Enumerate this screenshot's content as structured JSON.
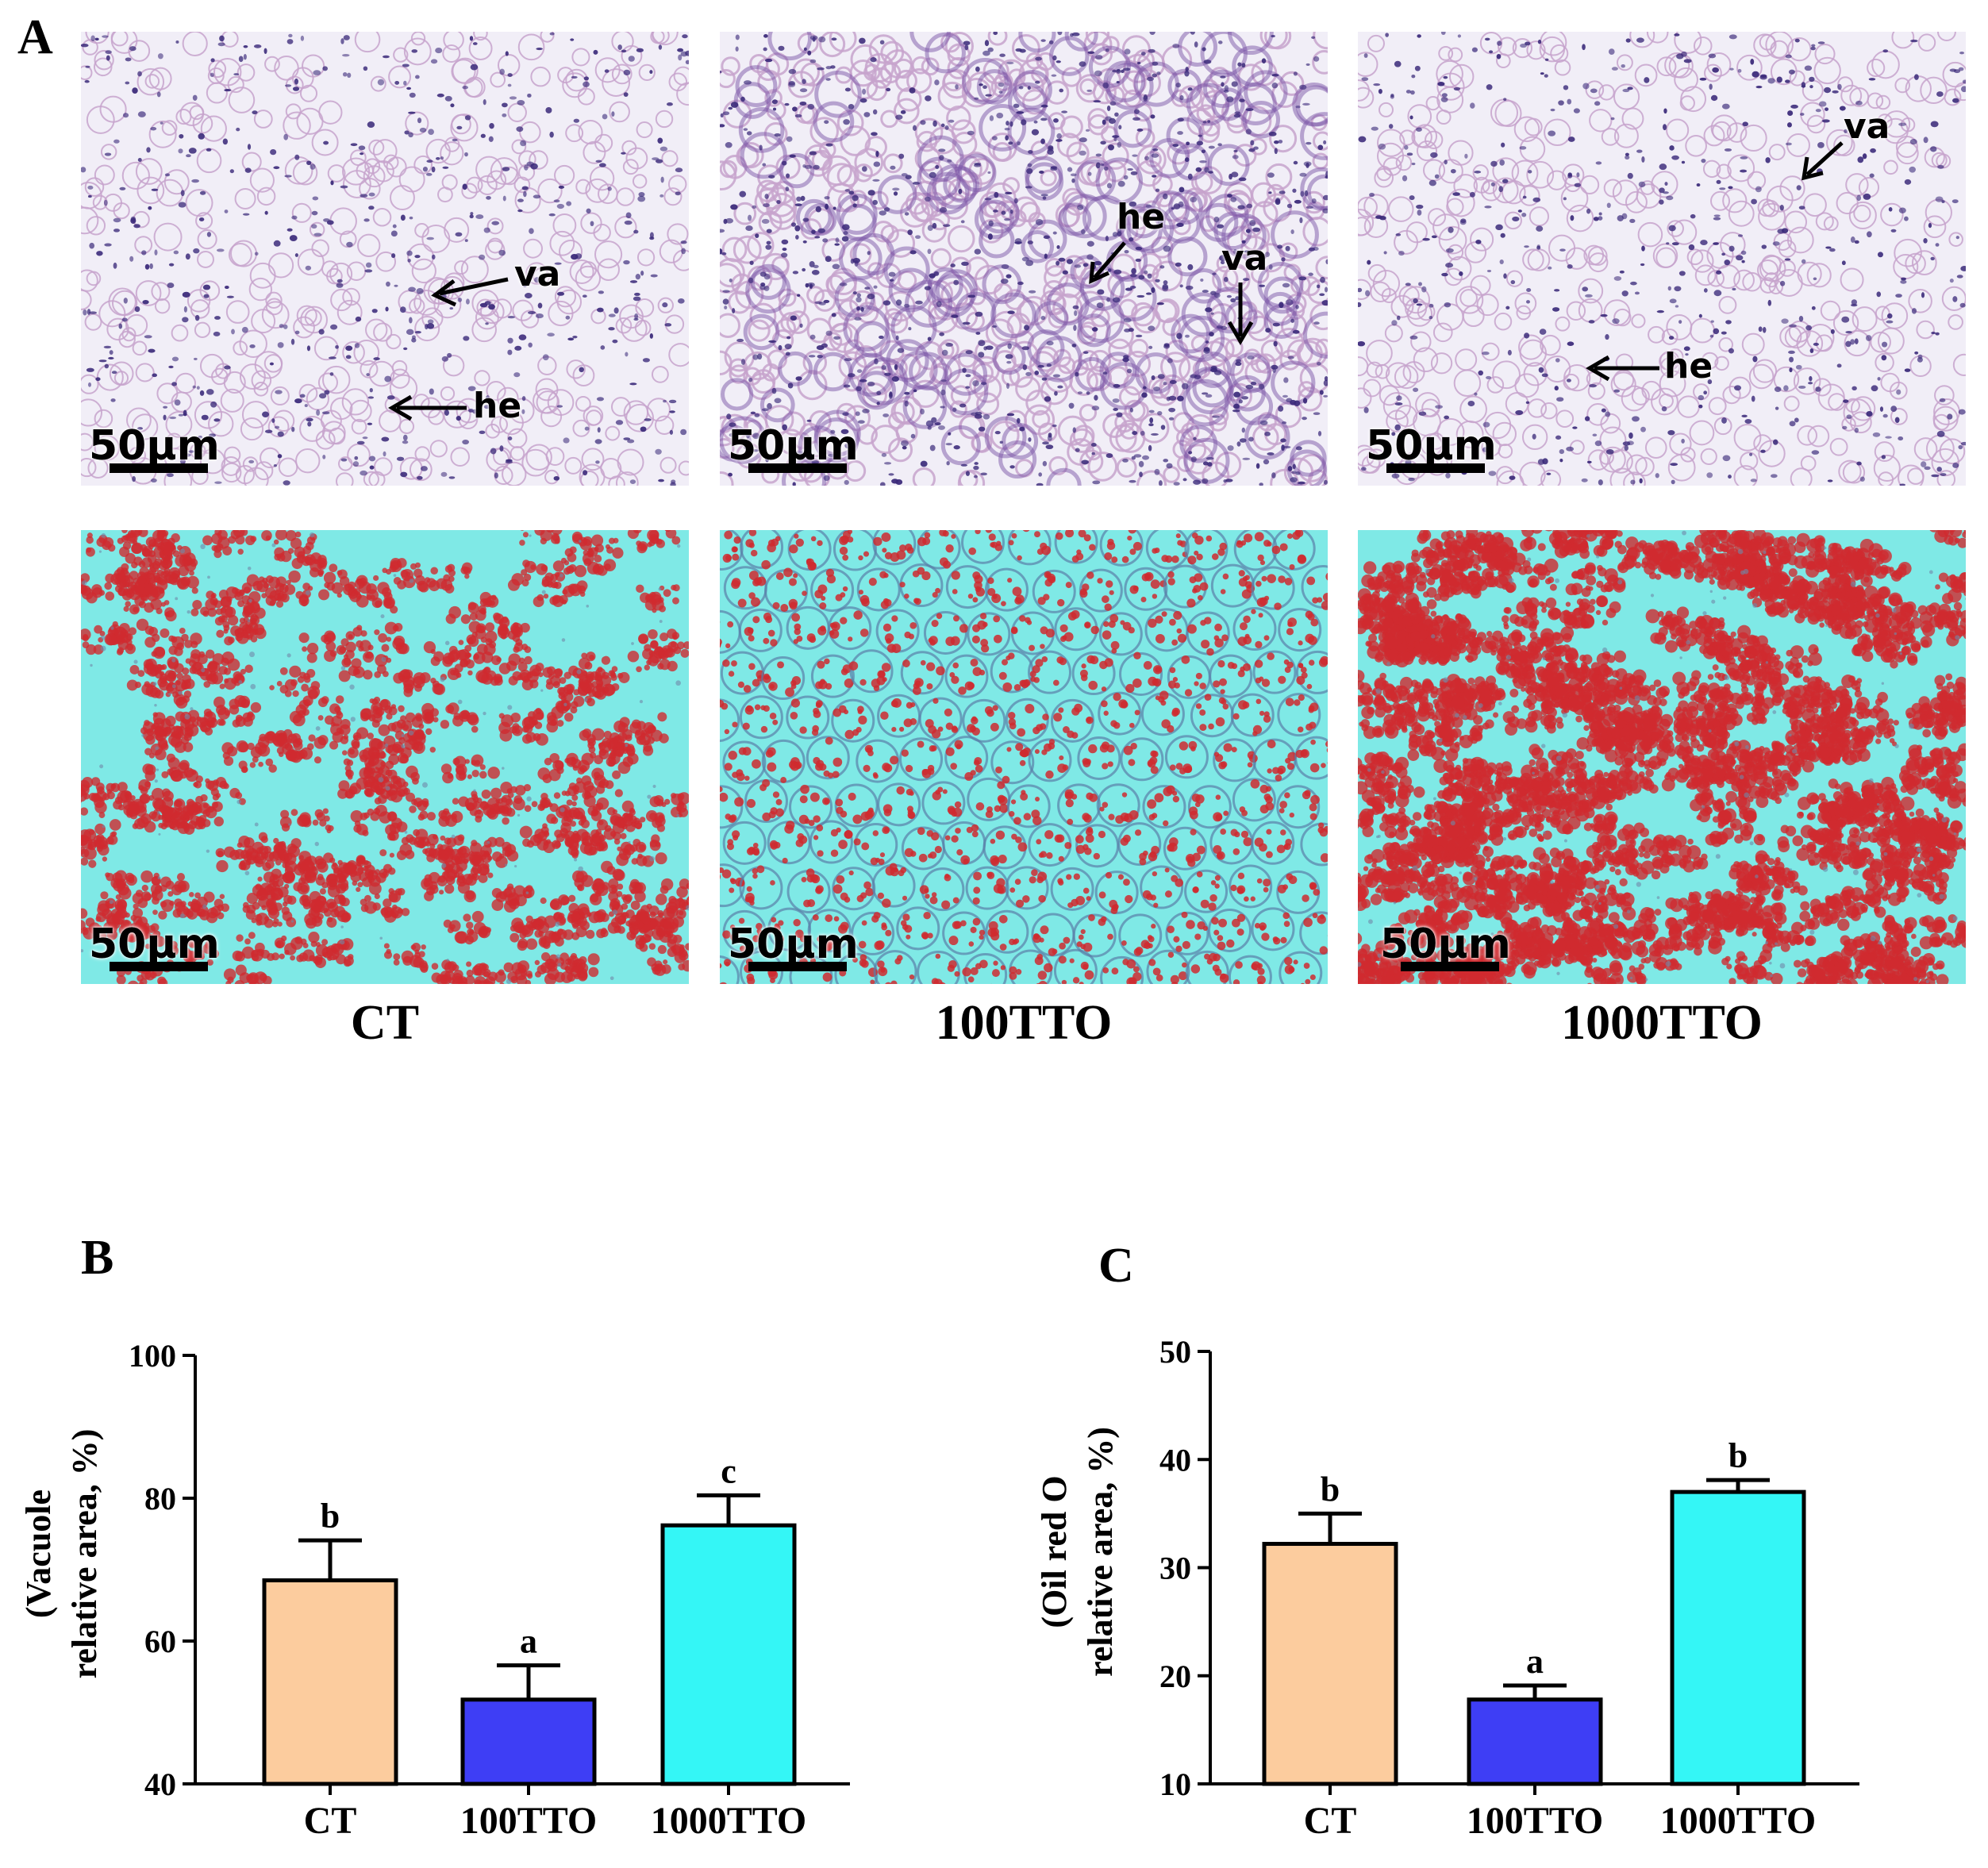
{
  "panel_labels": {
    "a": "A",
    "b": "B",
    "c": "C"
  },
  "micrographs": {
    "scale_label": "50μm",
    "groups": [
      "CT",
      "100TTO",
      "1000TTO"
    ],
    "he_row": [
      {
        "group": "CT",
        "annotations": [
          "va",
          "he"
        ]
      },
      {
        "group": "100TTO",
        "annotations": [
          "he",
          "va"
        ]
      },
      {
        "group": "1000TTO",
        "annotations": [
          "va",
          "he"
        ]
      }
    ],
    "colors": {
      "he_background": "#f1eef7",
      "he_membrane": "#c7a3cc",
      "he_nucleus": "#3b2a7a",
      "oil_background": "#7fe9e6",
      "oil_droplet": "#cf2a2f"
    }
  },
  "chart_data": [
    {
      "type": "bar",
      "panel": "B",
      "categories": [
        "CT",
        "100TTO",
        "1000TTO"
      ],
      "values": [
        68.5,
        51.8,
        76.2
      ],
      "errors": [
        5.6,
        4.8,
        4.2
      ],
      "significance": [
        "b",
        "a",
        "c"
      ],
      "colors": [
        "#fccc9e",
        "#3e3ef5",
        "#34f6f6"
      ],
      "ylabel_line1": "(Vacuole",
      "ylabel_line2": "relative area, %)",
      "ylim": [
        40,
        100
      ],
      "yticks": [
        40,
        60,
        80,
        100
      ]
    },
    {
      "type": "bar",
      "panel": "C",
      "categories": [
        "CT",
        "100TTO",
        "1000TTO"
      ],
      "values": [
        32.2,
        17.8,
        37.0
      ],
      "errors": [
        2.8,
        1.3,
        1.1
      ],
      "significance": [
        "b",
        "a",
        "b"
      ],
      "colors": [
        "#fccc9e",
        "#3e3ef5",
        "#34f6f6"
      ],
      "ylabel_line1": "(Oil red O",
      "ylabel_line2": "relative area, %)",
      "ylim": [
        10,
        50
      ],
      "yticks": [
        10,
        20,
        30,
        40,
        50
      ]
    }
  ]
}
